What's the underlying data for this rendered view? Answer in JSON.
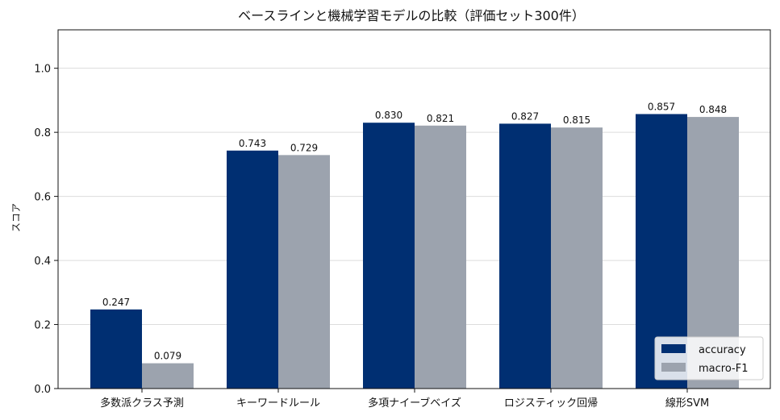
{
  "chart_data": {
    "type": "bar",
    "title": "ベースラインと機械学習モデルの比較（評価セット300件）",
    "xlabel": "",
    "ylabel": "スコア",
    "ylim": [
      0,
      1.12
    ],
    "yticks": [
      "0.0",
      "0.2",
      "0.4",
      "0.6",
      "0.8",
      "1.0"
    ],
    "grid": "horizontal",
    "legend_position": "bottom-right",
    "categories": [
      "多数派クラス予測",
      "キーワードルール",
      "多項ナイーブベイズ",
      "ロジスティック回帰",
      "線形SVM"
    ],
    "series": [
      {
        "name": "accuracy",
        "color": "#002f72",
        "values": [
          0.247,
          0.743,
          0.83,
          0.827,
          0.857
        ],
        "labels": [
          "0.247",
          "0.743",
          "0.830",
          "0.827",
          "0.857"
        ]
      },
      {
        "name": "macro-F1",
        "color": "#9ca3ae",
        "values": [
          0.079,
          0.729,
          0.821,
          0.815,
          0.848
        ],
        "labels": [
          "0.079",
          "0.729",
          "0.821",
          "0.815",
          "0.848"
        ]
      }
    ]
  }
}
